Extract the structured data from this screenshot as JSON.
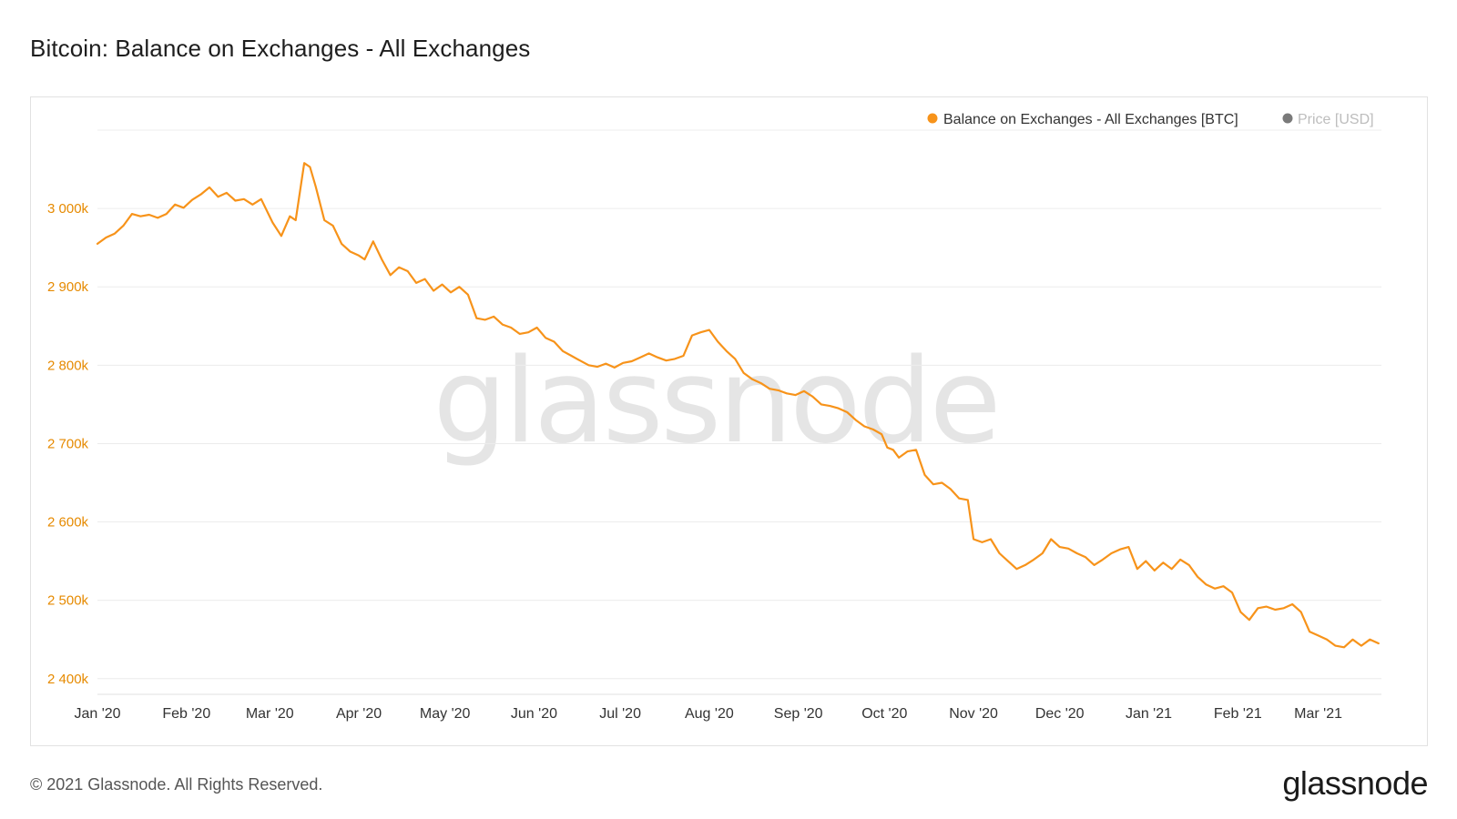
{
  "title": "Bitcoin: Balance on Exchanges - All Exchanges",
  "footer": {
    "copyright": "© 2021 Glassnode. All Rights Reserved.",
    "logo": "glassnode"
  },
  "watermark": "glassnode",
  "colors": {
    "series": "#f7931a",
    "axis_label": "#e68a00",
    "grid": "#ececec",
    "watermark": "#e5e5e5",
    "price_legend": "#8a8a8a"
  },
  "chart_data": {
    "type": "line",
    "title": "Bitcoin: Balance on Exchanges - All Exchanges",
    "legend_position": "top-right",
    "grid": true,
    "ylim": [
      2380,
      3100
    ],
    "y_ticks": [
      {
        "value": 2400,
        "label": "2 400k"
      },
      {
        "value": 2500,
        "label": "2 500k"
      },
      {
        "value": 2600,
        "label": "2 600k"
      },
      {
        "value": 2700,
        "label": "2 700k"
      },
      {
        "value": 2800,
        "label": "2 800k"
      },
      {
        "value": 2900,
        "label": "2 900k"
      },
      {
        "value": 3000,
        "label": "3 000k"
      }
    ],
    "x_ticks": [
      {
        "date": "2020-01-01",
        "label": "Jan '20"
      },
      {
        "date": "2020-02-01",
        "label": "Feb '20"
      },
      {
        "date": "2020-03-01",
        "label": "Mar '20"
      },
      {
        "date": "2020-04-01",
        "label": "Apr '20"
      },
      {
        "date": "2020-05-01",
        "label": "May '20"
      },
      {
        "date": "2020-06-01",
        "label": "Jun '20"
      },
      {
        "date": "2020-07-01",
        "label": "Jul '20"
      },
      {
        "date": "2020-08-01",
        "label": "Aug '20"
      },
      {
        "date": "2020-09-01",
        "label": "Sep '20"
      },
      {
        "date": "2020-10-01",
        "label": "Oct '20"
      },
      {
        "date": "2020-11-01",
        "label": "Nov '20"
      },
      {
        "date": "2020-12-01",
        "label": "Dec '20"
      },
      {
        "date": "2021-01-01",
        "label": "Jan '21"
      },
      {
        "date": "2021-02-01",
        "label": "Feb '21"
      },
      {
        "date": "2021-03-01",
        "label": "Mar '21"
      }
    ],
    "xlim": [
      "2020-01-01",
      "2021-03-23"
    ],
    "series": [
      {
        "name": "Balance on Exchanges - All Exchanges [BTC]",
        "unit": "k BTC",
        "color": "#f7931a",
        "visible": true,
        "points": [
          [
            "2020-01-01",
            2955
          ],
          [
            "2020-01-04",
            2963
          ],
          [
            "2020-01-07",
            2968
          ],
          [
            "2020-01-10",
            2978
          ],
          [
            "2020-01-13",
            2993
          ],
          [
            "2020-01-16",
            2990
          ],
          [
            "2020-01-19",
            2992
          ],
          [
            "2020-01-22",
            2988
          ],
          [
            "2020-01-25",
            2993
          ],
          [
            "2020-01-28",
            3005
          ],
          [
            "2020-01-31",
            3001
          ],
          [
            "2020-02-03",
            3011
          ],
          [
            "2020-02-06",
            3018
          ],
          [
            "2020-02-09",
            3027
          ],
          [
            "2020-02-12",
            3015
          ],
          [
            "2020-02-15",
            3020
          ],
          [
            "2020-02-18",
            3010
          ],
          [
            "2020-02-21",
            3012
          ],
          [
            "2020-02-24",
            3005
          ],
          [
            "2020-02-27",
            3012
          ],
          [
            "2020-03-02",
            2982
          ],
          [
            "2020-03-05",
            2965
          ],
          [
            "2020-03-08",
            2990
          ],
          [
            "2020-03-10",
            2985
          ],
          [
            "2020-03-13",
            3058
          ],
          [
            "2020-03-15",
            3053
          ],
          [
            "2020-03-17",
            3028
          ],
          [
            "2020-03-20",
            2985
          ],
          [
            "2020-03-23",
            2978
          ],
          [
            "2020-03-26",
            2955
          ],
          [
            "2020-03-29",
            2945
          ],
          [
            "2020-04-01",
            2940
          ],
          [
            "2020-04-03",
            2935
          ],
          [
            "2020-04-06",
            2958
          ],
          [
            "2020-04-09",
            2935
          ],
          [
            "2020-04-12",
            2915
          ],
          [
            "2020-04-15",
            2925
          ],
          [
            "2020-04-18",
            2920
          ],
          [
            "2020-04-21",
            2905
          ],
          [
            "2020-04-24",
            2910
          ],
          [
            "2020-04-27",
            2895
          ],
          [
            "2020-04-30",
            2903
          ],
          [
            "2020-05-03",
            2893
          ],
          [
            "2020-05-06",
            2900
          ],
          [
            "2020-05-09",
            2890
          ],
          [
            "2020-05-12",
            2860
          ],
          [
            "2020-05-15",
            2858
          ],
          [
            "2020-05-18",
            2862
          ],
          [
            "2020-05-21",
            2852
          ],
          [
            "2020-05-24",
            2848
          ],
          [
            "2020-05-27",
            2840
          ],
          [
            "2020-05-30",
            2842
          ],
          [
            "2020-06-02",
            2848
          ],
          [
            "2020-06-05",
            2835
          ],
          [
            "2020-06-08",
            2830
          ],
          [
            "2020-06-11",
            2818
          ],
          [
            "2020-06-14",
            2812
          ],
          [
            "2020-06-17",
            2806
          ],
          [
            "2020-06-20",
            2800
          ],
          [
            "2020-06-23",
            2798
          ],
          [
            "2020-06-26",
            2802
          ],
          [
            "2020-06-29",
            2797
          ],
          [
            "2020-07-02",
            2803
          ],
          [
            "2020-07-05",
            2805
          ],
          [
            "2020-07-08",
            2810
          ],
          [
            "2020-07-11",
            2815
          ],
          [
            "2020-07-14",
            2810
          ],
          [
            "2020-07-17",
            2806
          ],
          [
            "2020-07-20",
            2808
          ],
          [
            "2020-07-23",
            2812
          ],
          [
            "2020-07-26",
            2838
          ],
          [
            "2020-07-29",
            2842
          ],
          [
            "2020-08-01",
            2845
          ],
          [
            "2020-08-04",
            2830
          ],
          [
            "2020-08-07",
            2818
          ],
          [
            "2020-08-10",
            2808
          ],
          [
            "2020-08-13",
            2790
          ],
          [
            "2020-08-16",
            2782
          ],
          [
            "2020-08-19",
            2777
          ],
          [
            "2020-08-22",
            2770
          ],
          [
            "2020-08-25",
            2768
          ],
          [
            "2020-08-28",
            2764
          ],
          [
            "2020-08-31",
            2762
          ],
          [
            "2020-09-03",
            2767
          ],
          [
            "2020-09-06",
            2760
          ],
          [
            "2020-09-09",
            2750
          ],
          [
            "2020-09-12",
            2748
          ],
          [
            "2020-09-15",
            2745
          ],
          [
            "2020-09-18",
            2740
          ],
          [
            "2020-09-21",
            2730
          ],
          [
            "2020-09-24",
            2722
          ],
          [
            "2020-09-27",
            2718
          ],
          [
            "2020-09-30",
            2712
          ],
          [
            "2020-10-02",
            2695
          ],
          [
            "2020-10-04",
            2692
          ],
          [
            "2020-10-06",
            2682
          ],
          [
            "2020-10-09",
            2690
          ],
          [
            "2020-10-12",
            2692
          ],
          [
            "2020-10-15",
            2660
          ],
          [
            "2020-10-18",
            2648
          ],
          [
            "2020-10-21",
            2650
          ],
          [
            "2020-10-24",
            2642
          ],
          [
            "2020-10-27",
            2630
          ],
          [
            "2020-10-30",
            2628
          ],
          [
            "2020-11-01",
            2578
          ],
          [
            "2020-11-04",
            2574
          ],
          [
            "2020-11-07",
            2578
          ],
          [
            "2020-11-10",
            2560
          ],
          [
            "2020-11-13",
            2550
          ],
          [
            "2020-11-16",
            2540
          ],
          [
            "2020-11-19",
            2545
          ],
          [
            "2020-11-22",
            2552
          ],
          [
            "2020-11-25",
            2560
          ],
          [
            "2020-11-28",
            2578
          ],
          [
            "2020-12-01",
            2568
          ],
          [
            "2020-12-04",
            2566
          ],
          [
            "2020-12-07",
            2560
          ],
          [
            "2020-12-10",
            2555
          ],
          [
            "2020-12-13",
            2545
          ],
          [
            "2020-12-16",
            2552
          ],
          [
            "2020-12-19",
            2560
          ],
          [
            "2020-12-22",
            2565
          ],
          [
            "2020-12-25",
            2568
          ],
          [
            "2020-12-28",
            2540
          ],
          [
            "2020-12-31",
            2550
          ],
          [
            "2021-01-03",
            2538
          ],
          [
            "2021-01-06",
            2548
          ],
          [
            "2021-01-09",
            2540
          ],
          [
            "2021-01-12",
            2552
          ],
          [
            "2021-01-15",
            2545
          ],
          [
            "2021-01-18",
            2530
          ],
          [
            "2021-01-21",
            2520
          ],
          [
            "2021-01-24",
            2515
          ],
          [
            "2021-01-27",
            2518
          ],
          [
            "2021-01-30",
            2510
          ],
          [
            "2021-02-02",
            2485
          ],
          [
            "2021-02-05",
            2475
          ],
          [
            "2021-02-08",
            2490
          ],
          [
            "2021-02-11",
            2492
          ],
          [
            "2021-02-14",
            2488
          ],
          [
            "2021-02-17",
            2490
          ],
          [
            "2021-02-20",
            2495
          ],
          [
            "2021-02-23",
            2485
          ],
          [
            "2021-02-26",
            2460
          ],
          [
            "2021-03-01",
            2455
          ],
          [
            "2021-03-04",
            2450
          ],
          [
            "2021-03-07",
            2442
          ],
          [
            "2021-03-10",
            2440
          ],
          [
            "2021-03-13",
            2450
          ],
          [
            "2021-03-16",
            2442
          ],
          [
            "2021-03-19",
            2450
          ],
          [
            "2021-03-22",
            2445
          ]
        ]
      },
      {
        "name": "Price [USD]",
        "color": "#8a8a8a",
        "visible": false
      }
    ]
  }
}
